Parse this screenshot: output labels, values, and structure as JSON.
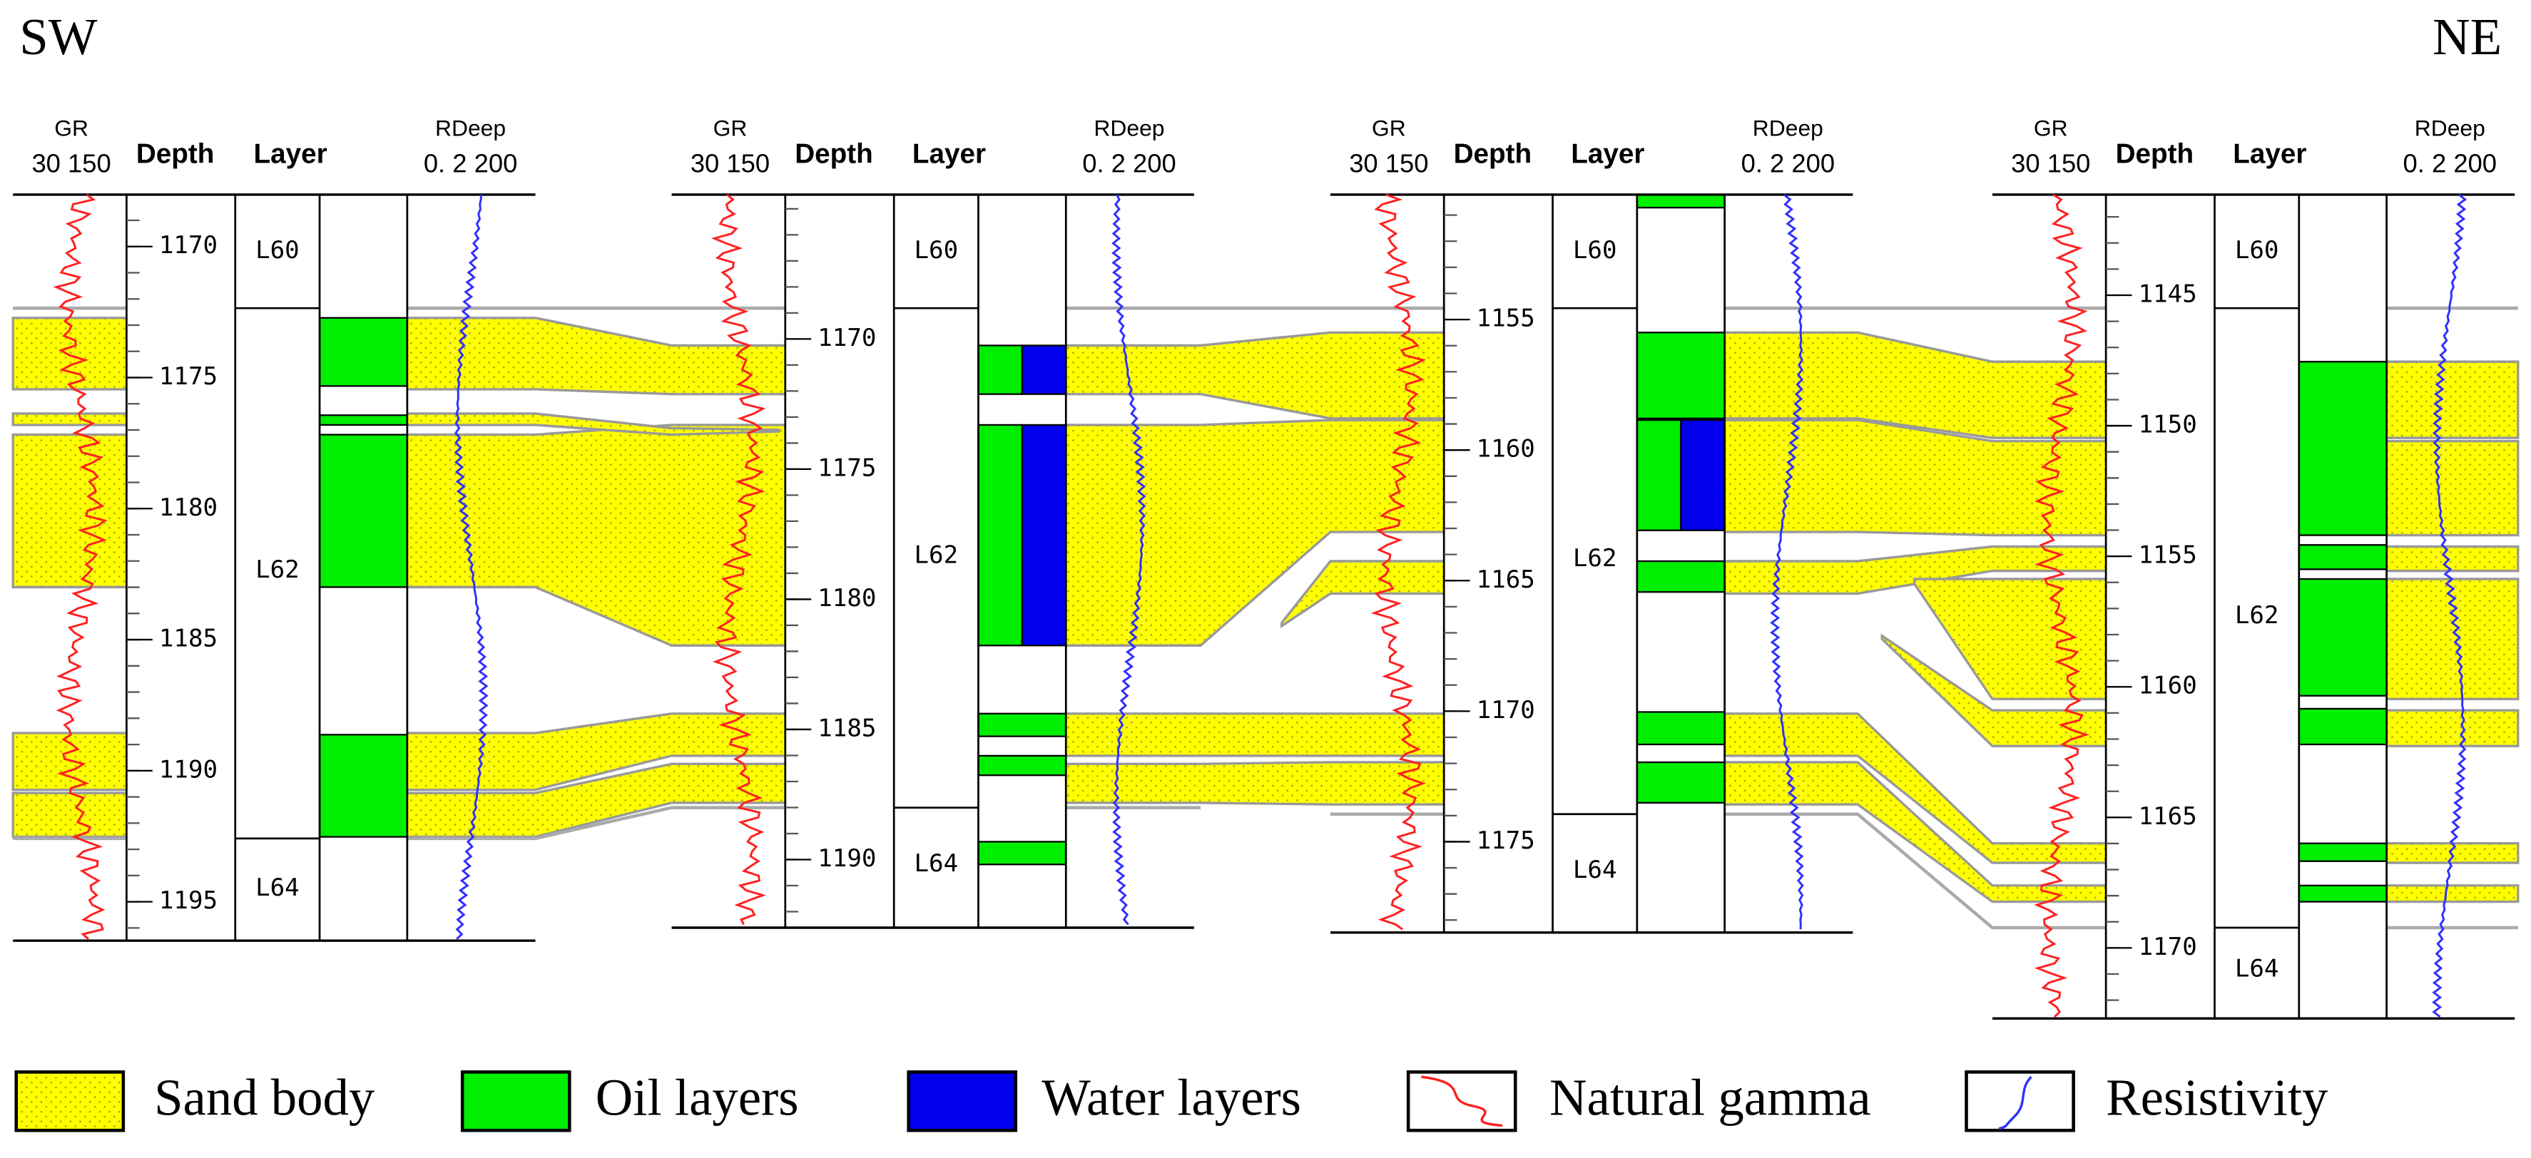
{
  "header": {
    "left": "SW",
    "right": "NE"
  },
  "wells": [
    {
      "gr_label": "GR",
      "gr_range": "30 150",
      "depth_label": "Depth",
      "layer_label": "Layer",
      "rdeep_label": "RDeep",
      "rdeep_range": "0. 2 200",
      "depths": [
        1170,
        1175,
        1180,
        1185,
        1190,
        1195
      ],
      "layers": [
        "L60",
        "L62",
        "L64"
      ]
    },
    {
      "gr_label": "GR",
      "gr_range": "30 150",
      "depth_label": "Depth",
      "layer_label": "Layer",
      "rdeep_label": "RDeep",
      "rdeep_range": "0. 2 200",
      "depths": [
        1170,
        1175,
        1180,
        1185,
        1190
      ],
      "layers": [
        "L60",
        "L62",
        "L64"
      ]
    },
    {
      "gr_label": "GR",
      "gr_range": "30 150",
      "depth_label": "Depth",
      "layer_label": "Layer",
      "rdeep_label": "RDeep",
      "rdeep_range": "0. 2 200",
      "depths": [
        1155,
        1160,
        1165,
        1170,
        1175
      ],
      "layers": [
        "L60",
        "L62",
        "L64"
      ]
    },
    {
      "gr_label": "GR",
      "gr_range": "30 150",
      "depth_label": "Depth",
      "layer_label": "Layer",
      "rdeep_label": "RDeep",
      "rdeep_range": "0. 2 200",
      "depths": [
        1145,
        1150,
        1155,
        1160,
        1165,
        1170
      ],
      "layers": [
        "L60",
        "L62",
        "L64"
      ]
    }
  ],
  "legend": [
    "Sand body",
    "Oil layers",
    "Water layers",
    "Natural gamma",
    "Resistivity"
  ]
}
